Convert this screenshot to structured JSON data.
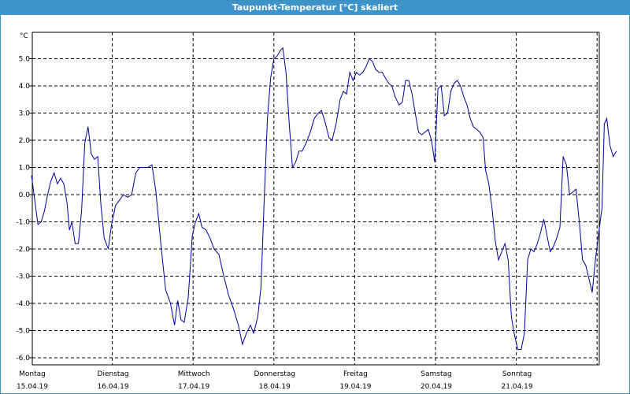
{
  "window": {
    "title": "Taupunkt-Temperatur [°C] skaliert"
  },
  "chart_data": {
    "type": "line",
    "title": "Taupunkt-Temperatur [°C] skaliert",
    "ylabel": "°C",
    "xlabel": "",
    "ylim": [
      -6.2,
      6.0
    ],
    "yticks": [
      {
        "value": 5,
        "label": "5.0"
      },
      {
        "value": 4,
        "label": "4.0"
      },
      {
        "value": 3,
        "label": "3.0"
      },
      {
        "value": 2,
        "label": "2.0"
      },
      {
        "value": 1,
        "label": "1.0"
      },
      {
        "value": 0,
        "label": "0.0"
      },
      {
        "value": -1,
        "label": "-1.0"
      },
      {
        "value": -2,
        "label": "-2.0"
      },
      {
        "value": -3,
        "label": "-3.0"
      },
      {
        "value": -4,
        "label": "-4.0"
      },
      {
        "value": -5,
        "label": "-5.0"
      },
      {
        "value": -6,
        "label": "-6.0"
      }
    ],
    "xlim": [
      0,
      7
    ],
    "xticks": [
      {
        "day": "Montag",
        "date": "15.04.19"
      },
      {
        "day": "Dienstag",
        "date": "16.04.19"
      },
      {
        "day": "Mittwoch",
        "date": "17.04.19"
      },
      {
        "day": "Donnerstag",
        "date": "18.04.19"
      },
      {
        "day": "Freitag",
        "date": "19.04.19"
      },
      {
        "day": "Samstag",
        "date": "20.04.19"
      },
      {
        "day": "Sonntag",
        "date": "21.04.19"
      }
    ],
    "grid": true,
    "color": "#0000a0",
    "series": [
      {
        "points": [
          [
            0.0,
            0.7
          ],
          [
            0.04,
            -0.2
          ],
          [
            0.08,
            -1.1
          ],
          [
            0.12,
            -1.0
          ],
          [
            0.16,
            -0.6
          ],
          [
            0.2,
            0.0
          ],
          [
            0.24,
            0.5
          ],
          [
            0.28,
            0.8
          ],
          [
            0.32,
            0.4
          ],
          [
            0.36,
            0.6
          ],
          [
            0.4,
            0.4
          ],
          [
            0.44,
            -0.3
          ],
          [
            0.47,
            -1.3
          ],
          [
            0.5,
            -1.0
          ],
          [
            0.54,
            -1.8
          ],
          [
            0.58,
            -1.8
          ],
          [
            0.62,
            -0.6
          ],
          [
            0.66,
            1.9
          ],
          [
            0.7,
            2.5
          ],
          [
            0.74,
            1.5
          ],
          [
            0.78,
            1.3
          ],
          [
            0.82,
            1.4
          ],
          [
            0.86,
            -0.4
          ],
          [
            0.9,
            -1.6
          ],
          [
            0.95,
            -2.0
          ],
          [
            0.99,
            -1.1
          ],
          [
            1.04,
            -0.4
          ],
          [
            1.09,
            -0.2
          ],
          [
            1.14,
            0.0
          ],
          [
            1.19,
            -0.1
          ],
          [
            1.24,
            0.0
          ],
          [
            1.29,
            0.8
          ],
          [
            1.34,
            1.0
          ],
          [
            1.39,
            1.0
          ],
          [
            1.44,
            1.0
          ],
          [
            1.49,
            1.1
          ],
          [
            1.54,
            0.1
          ],
          [
            1.6,
            -1.8
          ],
          [
            1.66,
            -3.5
          ],
          [
            1.72,
            -4.0
          ],
          [
            1.77,
            -4.8
          ],
          [
            1.81,
            -3.9
          ],
          [
            1.85,
            -4.6
          ],
          [
            1.89,
            -4.7
          ],
          [
            1.94,
            -3.8
          ],
          [
            1.99,
            -1.5
          ],
          [
            2.03,
            -1.0
          ],
          [
            2.07,
            -0.7
          ],
          [
            2.11,
            -1.2
          ],
          [
            2.16,
            -1.3
          ],
          [
            2.21,
            -1.6
          ],
          [
            2.26,
            -2.0
          ],
          [
            2.32,
            -2.2
          ],
          [
            2.38,
            -3.0
          ],
          [
            2.44,
            -3.7
          ],
          [
            2.5,
            -4.2
          ],
          [
            2.56,
            -4.8
          ],
          [
            2.61,
            -5.5
          ],
          [
            2.66,
            -5.1
          ],
          [
            2.71,
            -4.8
          ],
          [
            2.75,
            -5.1
          ],
          [
            2.8,
            -4.5
          ],
          [
            2.84,
            -3.4
          ],
          [
            2.88,
            -0.2
          ],
          [
            2.92,
            2.8
          ],
          [
            2.96,
            4.3
          ],
          [
            3.0,
            5.0
          ],
          [
            3.04,
            5.1
          ],
          [
            3.08,
            5.3
          ],
          [
            3.11,
            5.4
          ],
          [
            3.15,
            4.5
          ],
          [
            3.19,
            2.6
          ],
          [
            3.23,
            1.0
          ],
          [
            3.27,
            1.2
          ],
          [
            3.31,
            1.6
          ],
          [
            3.35,
            1.6
          ],
          [
            3.4,
            1.9
          ],
          [
            3.45,
            2.3
          ],
          [
            3.5,
            2.8
          ],
          [
            3.55,
            3.0
          ],
          [
            3.59,
            3.1
          ],
          [
            3.64,
            2.6
          ],
          [
            3.68,
            2.1
          ],
          [
            3.72,
            2.0
          ],
          [
            3.77,
            2.6
          ],
          [
            3.82,
            3.5
          ],
          [
            3.86,
            3.8
          ],
          [
            3.9,
            3.7
          ],
          [
            3.94,
            4.5
          ],
          [
            3.98,
            4.2
          ],
          [
            4.02,
            4.5
          ],
          [
            4.06,
            4.4
          ],
          [
            4.1,
            4.5
          ],
          [
            4.14,
            4.7
          ],
          [
            4.18,
            5.0
          ],
          [
            4.22,
            4.9
          ],
          [
            4.26,
            4.6
          ],
          [
            4.3,
            4.5
          ],
          [
            4.34,
            4.5
          ],
          [
            4.38,
            4.3
          ],
          [
            4.42,
            4.1
          ],
          [
            4.46,
            4.0
          ],
          [
            4.5,
            3.6
          ],
          [
            4.55,
            3.3
          ],
          [
            4.59,
            3.4
          ],
          [
            4.63,
            4.2
          ],
          [
            4.67,
            4.2
          ],
          [
            4.71,
            3.7
          ],
          [
            4.75,
            3.0
          ],
          [
            4.79,
            2.3
          ],
          [
            4.83,
            2.2
          ],
          [
            4.87,
            2.3
          ],
          [
            4.91,
            2.4
          ],
          [
            4.95,
            2.0
          ],
          [
            4.99,
            1.2
          ],
          [
            5.03,
            3.9
          ],
          [
            5.07,
            4.0
          ],
          [
            5.11,
            2.9
          ],
          [
            5.15,
            3.0
          ],
          [
            5.19,
            3.8
          ],
          [
            5.23,
            4.1
          ],
          [
            5.27,
            4.2
          ],
          [
            5.31,
            4.0
          ],
          [
            5.35,
            3.6
          ],
          [
            5.39,
            3.3
          ],
          [
            5.43,
            2.8
          ],
          [
            5.47,
            2.5
          ],
          [
            5.51,
            2.4
          ],
          [
            5.55,
            2.3
          ],
          [
            5.59,
            2.1
          ],
          [
            5.62,
            0.9
          ],
          [
            5.66,
            0.4
          ],
          [
            5.7,
            -0.5
          ],
          [
            5.74,
            -1.7
          ],
          [
            5.78,
            -2.4
          ],
          [
            5.82,
            -2.1
          ],
          [
            5.86,
            -1.8
          ],
          [
            5.9,
            -2.4
          ],
          [
            5.94,
            -4.5
          ],
          [
            5.98,
            -5.2
          ],
          [
            6.02,
            -5.7
          ],
          [
            6.06,
            -5.7
          ],
          [
            6.1,
            -5.1
          ],
          [
            6.14,
            -2.4
          ],
          [
            6.18,
            -2.0
          ],
          [
            6.22,
            -2.1
          ],
          [
            6.26,
            -1.8
          ],
          [
            6.3,
            -1.4
          ],
          [
            6.34,
            -0.9
          ],
          [
            6.38,
            -1.5
          ],
          [
            6.42,
            -2.1
          ],
          [
            6.46,
            -1.9
          ],
          [
            6.5,
            -1.6
          ],
          [
            6.54,
            -1.2
          ],
          [
            6.58,
            1.4
          ],
          [
            6.62,
            1.1
          ],
          [
            6.66,
            0.0
          ],
          [
            6.7,
            0.1
          ],
          [
            6.74,
            0.2
          ],
          [
            6.78,
            -1.0
          ],
          [
            6.82,
            -2.4
          ],
          [
            6.86,
            -2.6
          ],
          [
            6.9,
            -3.1
          ],
          [
            6.94,
            -3.6
          ],
          [
            6.98,
            -2.4
          ],
          [
            7.02,
            -1.4
          ],
          [
            7.06,
            -0.5
          ],
          [
            7.09,
            2.6
          ],
          [
            7.12,
            2.8
          ],
          [
            7.16,
            1.8
          ],
          [
            7.2,
            1.4
          ],
          [
            7.24,
            1.6
          ]
        ]
      }
    ]
  }
}
